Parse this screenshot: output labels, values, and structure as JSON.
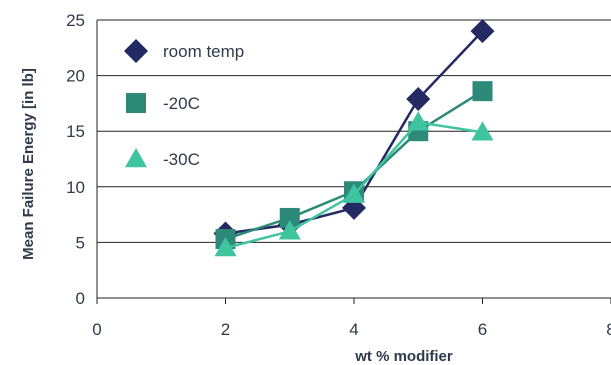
{
  "chart_data": {
    "type": "line",
    "xlabel": "wt % modifier",
    "ylabel": "Mean Failure Energy [in lb]",
    "xlim": [
      0,
      8
    ],
    "ylim": [
      0,
      25
    ],
    "x_ticks": [
      "0",
      "2",
      "4",
      "6",
      "8"
    ],
    "y_ticks": [
      "0",
      "5",
      "10",
      "15",
      "20",
      "25"
    ],
    "grid": "horizontal",
    "legend_position": "top-left",
    "series": [
      {
        "name": "room temp",
        "marker": "diamond",
        "color": "#232a63",
        "x": [
          2,
          3,
          4,
          5,
          6
        ],
        "y": [
          5.8,
          6.6,
          8.1,
          17.9,
          24.0
        ]
      },
      {
        "name": "-20C",
        "marker": "square",
        "color": "#2e8a78",
        "x": [
          2,
          3,
          4,
          5,
          6
        ],
        "y": [
          5.3,
          7.2,
          9.6,
          15.0,
          18.6
        ]
      },
      {
        "name": "-30C",
        "marker": "triangle",
        "color": "#3fc4a0",
        "x": [
          2,
          3,
          4,
          5,
          6
        ],
        "y": [
          4.5,
          6.0,
          9.3,
          15.8,
          14.9
        ]
      }
    ]
  }
}
